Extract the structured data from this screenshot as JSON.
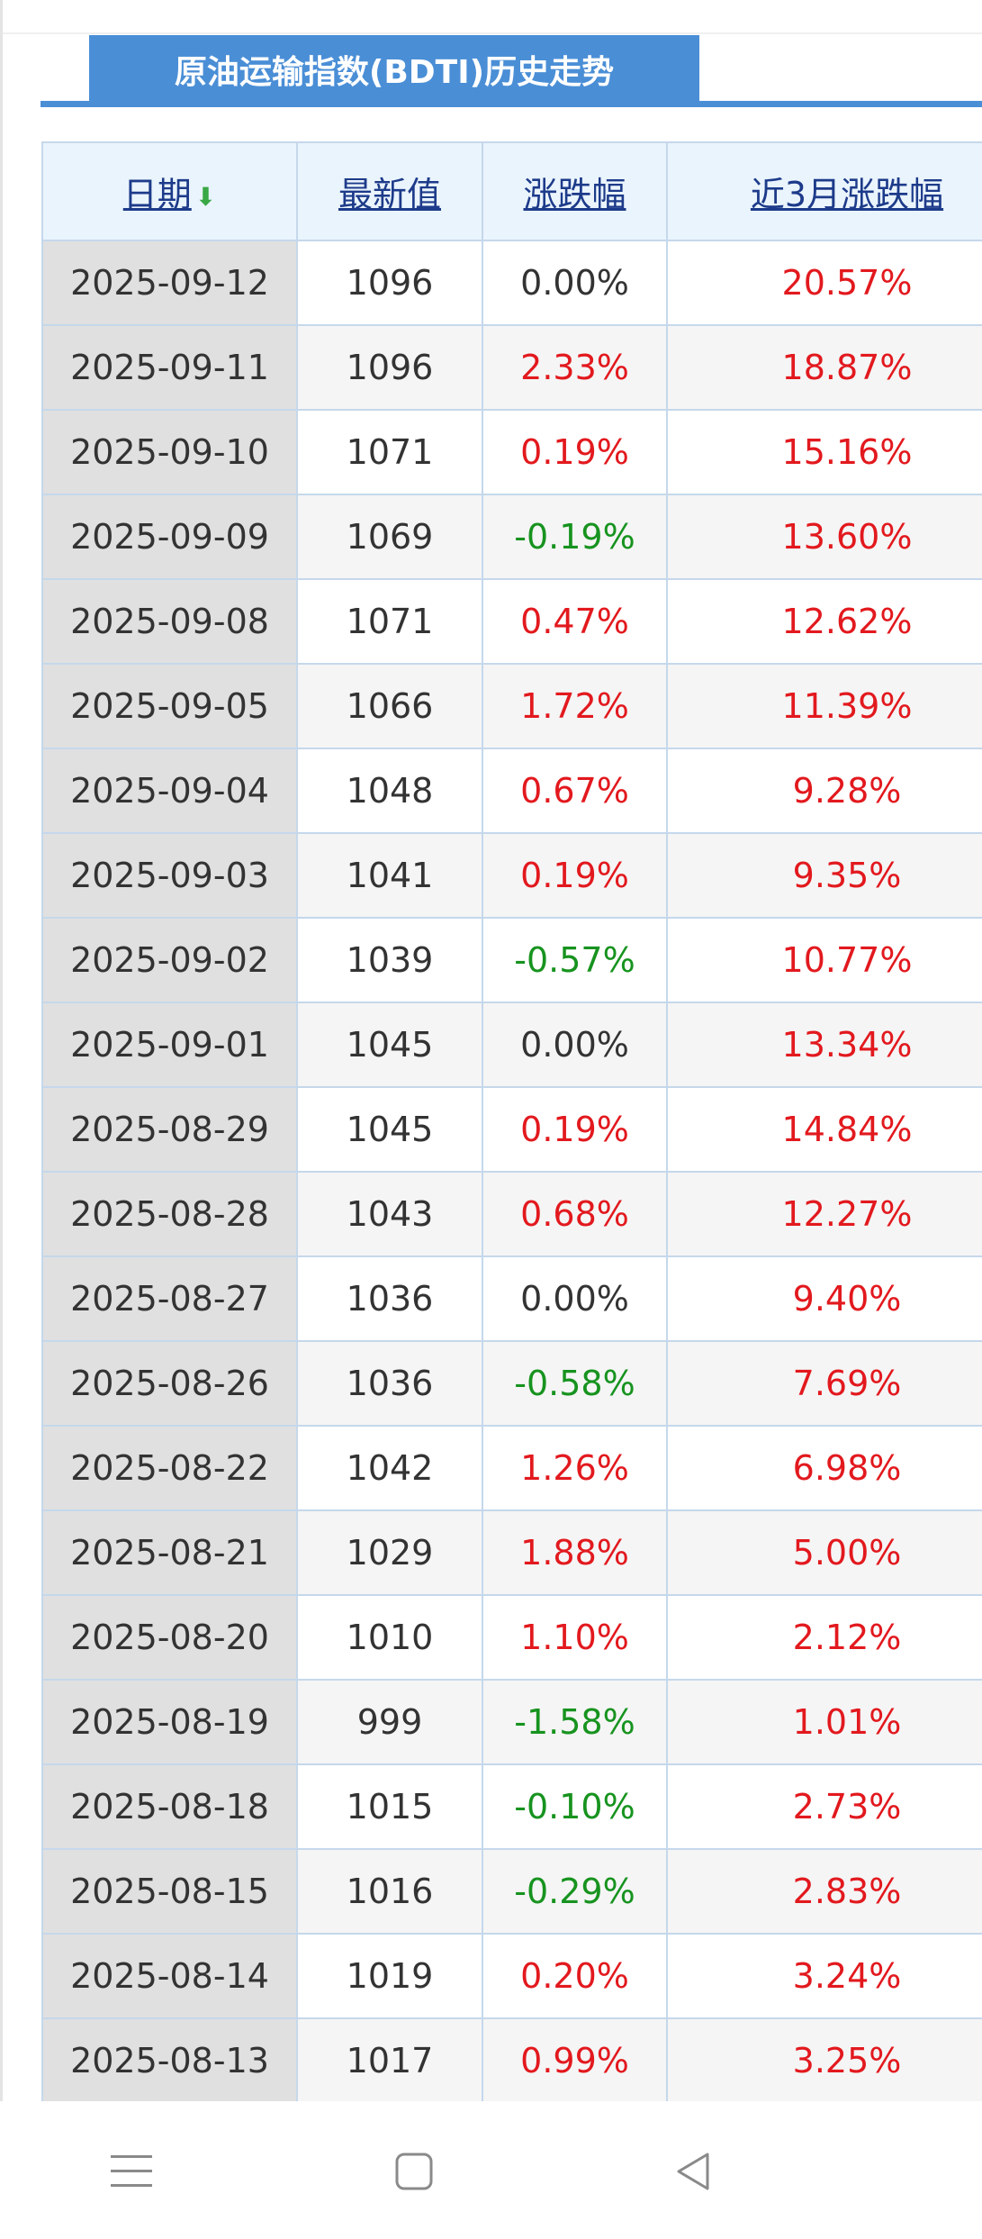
{
  "page": {
    "title": "原油运输指数(BDTI)历史走势"
  },
  "table": {
    "headers": {
      "date": "日期",
      "latest": "最新值",
      "change": "涨跌幅",
      "change_3m": "近3月涨跌幅"
    },
    "sort_icon": "sort-down-arrow-icon",
    "rows": [
      {
        "date": "2025-09-12",
        "value": "1096",
        "change": "0.00%",
        "change_dir": "flat",
        "change_3m": "20.57%",
        "change_3m_dir": "up"
      },
      {
        "date": "2025-09-11",
        "value": "1096",
        "change": "2.33%",
        "change_dir": "up",
        "change_3m": "18.87%",
        "change_3m_dir": "up"
      },
      {
        "date": "2025-09-10",
        "value": "1071",
        "change": "0.19%",
        "change_dir": "up",
        "change_3m": "15.16%",
        "change_3m_dir": "up"
      },
      {
        "date": "2025-09-09",
        "value": "1069",
        "change": "-0.19%",
        "change_dir": "down",
        "change_3m": "13.60%",
        "change_3m_dir": "up"
      },
      {
        "date": "2025-09-08",
        "value": "1071",
        "change": "0.47%",
        "change_dir": "up",
        "change_3m": "12.62%",
        "change_3m_dir": "up"
      },
      {
        "date": "2025-09-05",
        "value": "1066",
        "change": "1.72%",
        "change_dir": "up",
        "change_3m": "11.39%",
        "change_3m_dir": "up"
      },
      {
        "date": "2025-09-04",
        "value": "1048",
        "change": "0.67%",
        "change_dir": "up",
        "change_3m": "9.28%",
        "change_3m_dir": "up"
      },
      {
        "date": "2025-09-03",
        "value": "1041",
        "change": "0.19%",
        "change_dir": "up",
        "change_3m": "9.35%",
        "change_3m_dir": "up"
      },
      {
        "date": "2025-09-02",
        "value": "1039",
        "change": "-0.57%",
        "change_dir": "down",
        "change_3m": "10.77%",
        "change_3m_dir": "up"
      },
      {
        "date": "2025-09-01",
        "value": "1045",
        "change": "0.00%",
        "change_dir": "flat",
        "change_3m": "13.34%",
        "change_3m_dir": "up"
      },
      {
        "date": "2025-08-29",
        "value": "1045",
        "change": "0.19%",
        "change_dir": "up",
        "change_3m": "14.84%",
        "change_3m_dir": "up"
      },
      {
        "date": "2025-08-28",
        "value": "1043",
        "change": "0.68%",
        "change_dir": "up",
        "change_3m": "12.27%",
        "change_3m_dir": "up"
      },
      {
        "date": "2025-08-27",
        "value": "1036",
        "change": "0.00%",
        "change_dir": "flat",
        "change_3m": "9.40%",
        "change_3m_dir": "up"
      },
      {
        "date": "2025-08-26",
        "value": "1036",
        "change": "-0.58%",
        "change_dir": "down",
        "change_3m": "7.69%",
        "change_3m_dir": "up"
      },
      {
        "date": "2025-08-22",
        "value": "1042",
        "change": "1.26%",
        "change_dir": "up",
        "change_3m": "6.98%",
        "change_3m_dir": "up"
      },
      {
        "date": "2025-08-21",
        "value": "1029",
        "change": "1.88%",
        "change_dir": "up",
        "change_3m": "5.00%",
        "change_3m_dir": "up"
      },
      {
        "date": "2025-08-20",
        "value": "1010",
        "change": "1.10%",
        "change_dir": "up",
        "change_3m": "2.12%",
        "change_3m_dir": "up"
      },
      {
        "date": "2025-08-19",
        "value": "999",
        "change": "-1.58%",
        "change_dir": "down",
        "change_3m": "1.01%",
        "change_3m_dir": "up"
      },
      {
        "date": "2025-08-18",
        "value": "1015",
        "change": "-0.10%",
        "change_dir": "down",
        "change_3m": "2.73%",
        "change_3m_dir": "up"
      },
      {
        "date": "2025-08-15",
        "value": "1016",
        "change": "-0.29%",
        "change_dir": "down",
        "change_3m": "2.83%",
        "change_3m_dir": "up"
      },
      {
        "date": "2025-08-14",
        "value": "1019",
        "change": "0.20%",
        "change_dir": "up",
        "change_3m": "3.24%",
        "change_3m_dir": "up"
      },
      {
        "date": "2025-08-13",
        "value": "1017",
        "change": "0.99%",
        "change_dir": "up",
        "change_3m": "3.25%",
        "change_3m_dir": "up"
      }
    ]
  },
  "colors": {
    "accent": "#4a8ed6",
    "up": "#e2191e",
    "down": "#17931f",
    "header_bg": "#eaf4fd",
    "border": "#c5d8eb"
  },
  "navbar": {
    "icons": [
      "menu-icon",
      "home-square-icon",
      "back-triangle-icon"
    ]
  }
}
